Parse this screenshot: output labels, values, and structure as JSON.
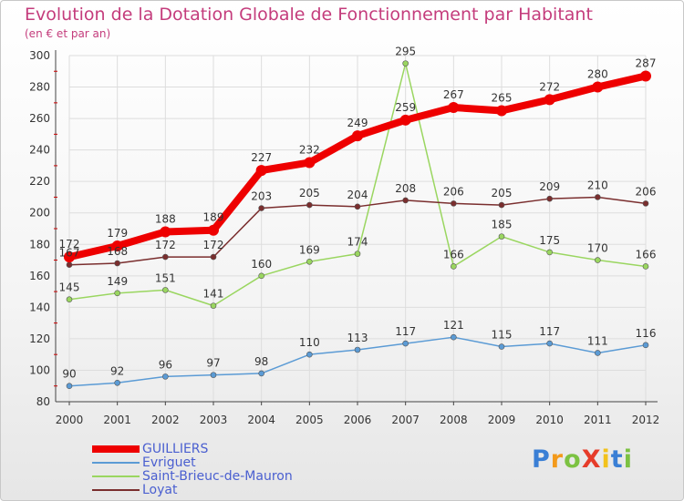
{
  "title": "Evolution de la Dotation Globale de Fonctionnement par Habitant",
  "subtitle": "(en € et par an)",
  "brand": {
    "text": "ProXiti",
    "letters": [
      {
        "ch": "P",
        "color": "#3a7fd5"
      },
      {
        "ch": "r",
        "color": "#f39a1b"
      },
      {
        "ch": "o",
        "color": "#7cc242"
      },
      {
        "ch": "X",
        "color": "#e63c2a"
      },
      {
        "ch": "i",
        "color": "#f2c21b"
      },
      {
        "ch": "t",
        "color": "#3a7fd5"
      },
      {
        "ch": "i",
        "color": "#7cc242"
      }
    ]
  },
  "colors": {
    "title": "#c43c7c",
    "axis": "#444444",
    "grid": "#dddddd",
    "label": "#333333",
    "legend_text": "#4a5fd0"
  },
  "chart_data": {
    "type": "line",
    "x": [
      2000,
      2001,
      2002,
      2003,
      2004,
      2005,
      2006,
      2007,
      2008,
      2009,
      2010,
      2011,
      2012
    ],
    "ylim": [
      80,
      300
    ],
    "yticks": [
      80,
      100,
      120,
      140,
      160,
      180,
      200,
      220,
      240,
      260,
      280,
      300
    ],
    "grid": true,
    "legend_position": "bottom-left",
    "series": [
      {
        "name": "GUILLIERS",
        "color": "#ee0000",
        "width": 8,
        "marker": 6,
        "values": [
          172,
          179,
          188,
          189,
          227,
          232,
          249,
          259,
          267,
          265,
          272,
          280,
          287
        ]
      },
      {
        "name": "Evriguet",
        "color": "#5b9bd5",
        "width": 1.5,
        "marker": 3,
        "values": [
          90,
          92,
          96,
          97,
          98,
          110,
          113,
          117,
          121,
          115,
          117,
          111,
          116
        ]
      },
      {
        "name": "Saint-Brieuc-de-Mauron",
        "color": "#9ad660",
        "width": 1.5,
        "marker": 3,
        "values": [
          145,
          149,
          151,
          141,
          160,
          169,
          174,
          295,
          166,
          185,
          175,
          170,
          166
        ]
      },
      {
        "name": "Loyat",
        "color": "#7a2e2e",
        "width": 1.5,
        "marker": 3,
        "values": [
          167,
          168,
          172,
          172,
          203,
          205,
          204,
          208,
          206,
          205,
          209,
          210,
          206
        ]
      }
    ]
  }
}
